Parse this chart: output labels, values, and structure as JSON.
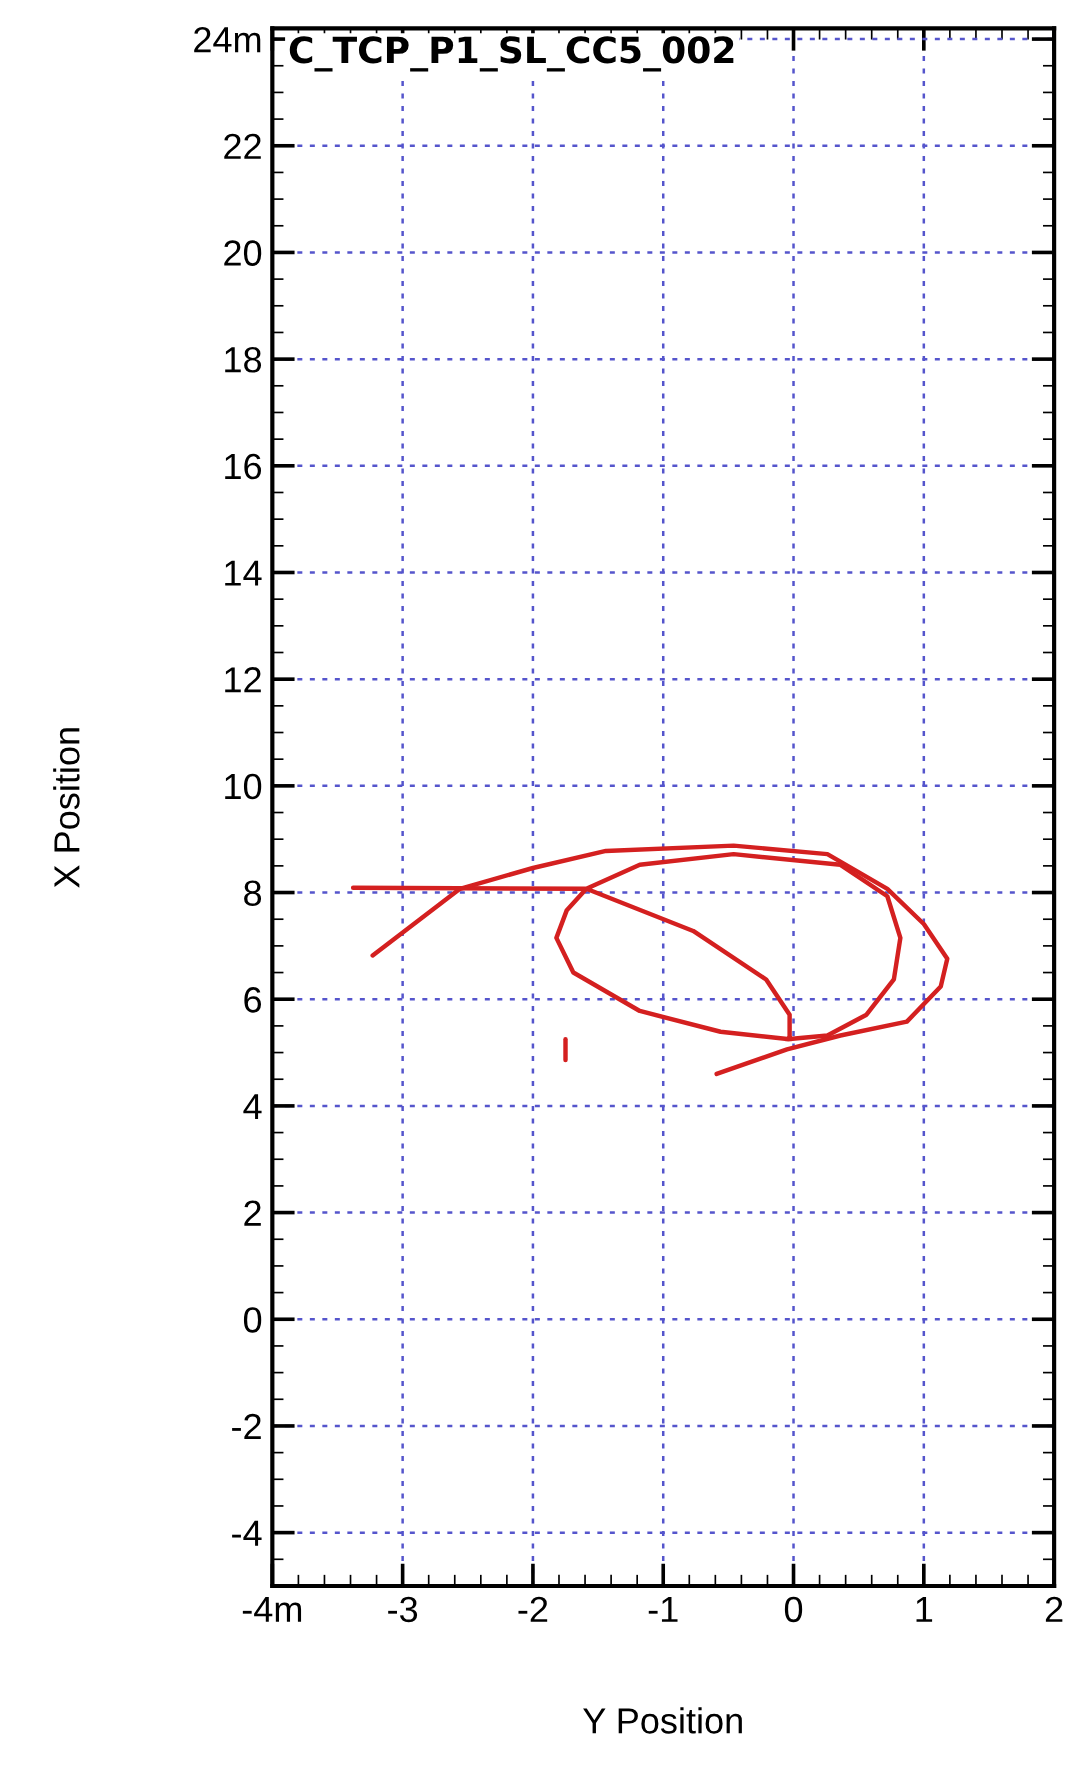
{
  "chart_data": {
    "type": "line",
    "title": "C_TCP_P1_SL_CC5_002",
    "xlabel": "Y Position",
    "ylabel": "X Position",
    "xlim": [
      -4,
      2
    ],
    "ylim": [
      -5,
      24.2
    ],
    "xticks": [
      {
        "value": -4,
        "label": "-4m"
      },
      -3,
      -2,
      -1,
      0,
      1,
      2
    ],
    "yticks": [
      -4,
      -2,
      0,
      2,
      4,
      6,
      8,
      10,
      12,
      14,
      16,
      18,
      20,
      22,
      {
        "value": 24,
        "label": "24m"
      }
    ],
    "grid": true,
    "marker": "none",
    "line_style": "solid",
    "series": [
      {
        "color": "#d42020",
        "x": [
          -3.23,
          -2.56,
          -2.0,
          -1.44,
          -0.46,
          0.26,
          0.72,
          1.0,
          1.18,
          1.13,
          0.87,
          0.36,
          -0.05,
          -0.59
        ],
        "values": [
          6.82,
          8.07,
          8.46,
          8.78,
          8.88,
          8.72,
          8.07,
          7.41,
          6.76,
          6.24,
          5.58,
          5.32,
          5.06,
          4.6
        ]
      },
      {
        "color": "#d42020",
        "x": [
          -3.38,
          -1.59,
          -0.77,
          -0.21,
          -0.03,
          -0.03,
          -0.56,
          -1.18,
          -1.69,
          -1.82,
          -1.74,
          -1.59,
          -1.18,
          -0.46,
          0.36,
          0.72,
          0.82,
          0.77,
          0.56,
          0.26,
          -0.05
        ],
        "values": [
          8.09,
          8.07,
          7.28,
          6.37,
          5.71,
          5.25,
          5.39,
          5.78,
          6.5,
          7.15,
          7.67,
          8.07,
          8.52,
          8.72,
          8.52,
          7.93,
          7.15,
          6.37,
          5.71,
          5.32,
          5.25
        ]
      },
      {
        "color": "#d42020",
        "x": [
          -1.75,
          -1.75
        ],
        "values": [
          5.25,
          4.86
        ]
      }
    ]
  }
}
